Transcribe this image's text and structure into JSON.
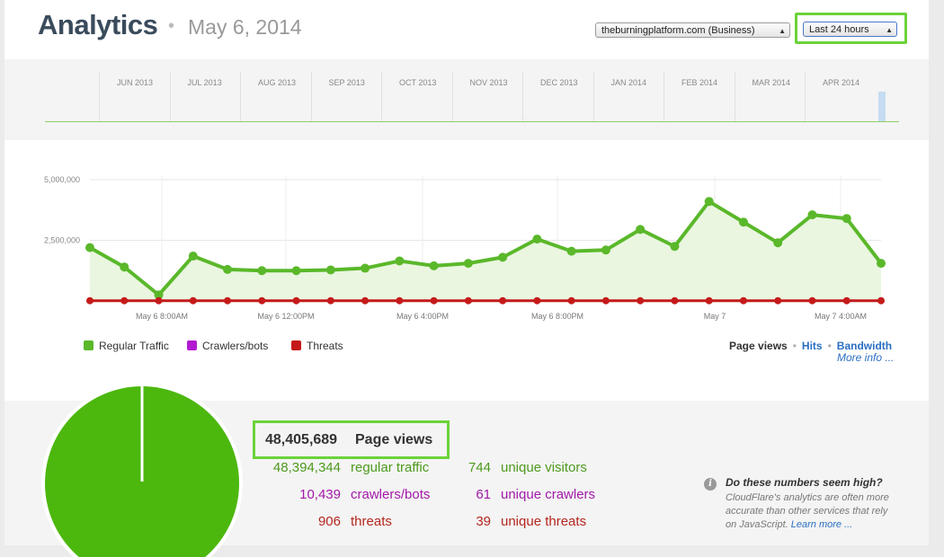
{
  "header": {
    "title": "Analytics",
    "separator": "•",
    "date": "May 6, 2014",
    "site_select": {
      "value": "theburningplatform.com (Business)"
    },
    "range_select": {
      "value": "Last 24 hours"
    }
  },
  "timeline": {
    "months": [
      "JUN 2013",
      "JUL 2013",
      "AUG 2013",
      "SEP 2013",
      "OCT 2013",
      "NOV 2013",
      "DEC 2013",
      "JAN 2014",
      "FEB 2014",
      "MAR 2014",
      "APR 2014"
    ]
  },
  "chart_data": {
    "type": "line",
    "x_tick_labels": [
      "May 6 8:00AM",
      "May 6 12:00PM",
      "May 6 4:00PM",
      "May 6 8:00PM",
      "May 7",
      "May 7 4:00AM"
    ],
    "y_tick_labels": [
      "5,000,000",
      "2,500,000"
    ],
    "ylim": [
      0,
      5000000
    ],
    "grid": true,
    "series": [
      {
        "name": "Regular Traffic",
        "color": "#5ab82a",
        "values": [
          2200000,
          1400000,
          250000,
          1850000,
          1300000,
          1250000,
          1250000,
          1280000,
          1350000,
          1650000,
          1450000,
          1550000,
          1800000,
          2550000,
          2050000,
          2100000,
          2950000,
          2250000,
          4100000,
          3250000,
          2400000,
          3550000,
          3400000,
          1550000
        ]
      },
      {
        "name": "Threats",
        "color": "#c41a1a",
        "values": [
          10000,
          10000,
          10000,
          10000,
          10000,
          10000,
          10000,
          10000,
          10000,
          10000,
          10000,
          10000,
          10000,
          10000,
          10000,
          10000,
          10000,
          10000,
          10000,
          10000,
          10000,
          10000,
          10000,
          10000
        ]
      }
    ]
  },
  "legend": [
    {
      "label": "Regular Traffic",
      "color": "#5ab82a"
    },
    {
      "label": "Crawlers/bots",
      "color": "#b21bd0"
    },
    {
      "label": "Threats",
      "color": "#c41a1a"
    }
  ],
  "tabs": {
    "page_views": "Page views",
    "sep": "•",
    "hits": "Hits",
    "bandwidth": "Bandwidth",
    "more": "More info ..."
  },
  "stats": {
    "total": {
      "value": "48,405,689",
      "label": "Page views"
    },
    "regular": {
      "value": "48,394,344",
      "label": "regular traffic"
    },
    "crawlers": {
      "value": "10,439",
      "label": "crawlers/bots"
    },
    "threats": {
      "value": "906",
      "label": "threats"
    },
    "unique_visitors": {
      "value": "744",
      "label": "unique visitors"
    },
    "unique_crawlers": {
      "value": "61",
      "label": "unique crawlers"
    },
    "unique_threats": {
      "value": "39",
      "label": "unique threats"
    }
  },
  "info": {
    "icon": "i",
    "title": "Do these numbers seem high?",
    "body": "CloudFlare's analytics are often more accurate than other services that rely on JavaScript.",
    "link": "Learn more ..."
  }
}
